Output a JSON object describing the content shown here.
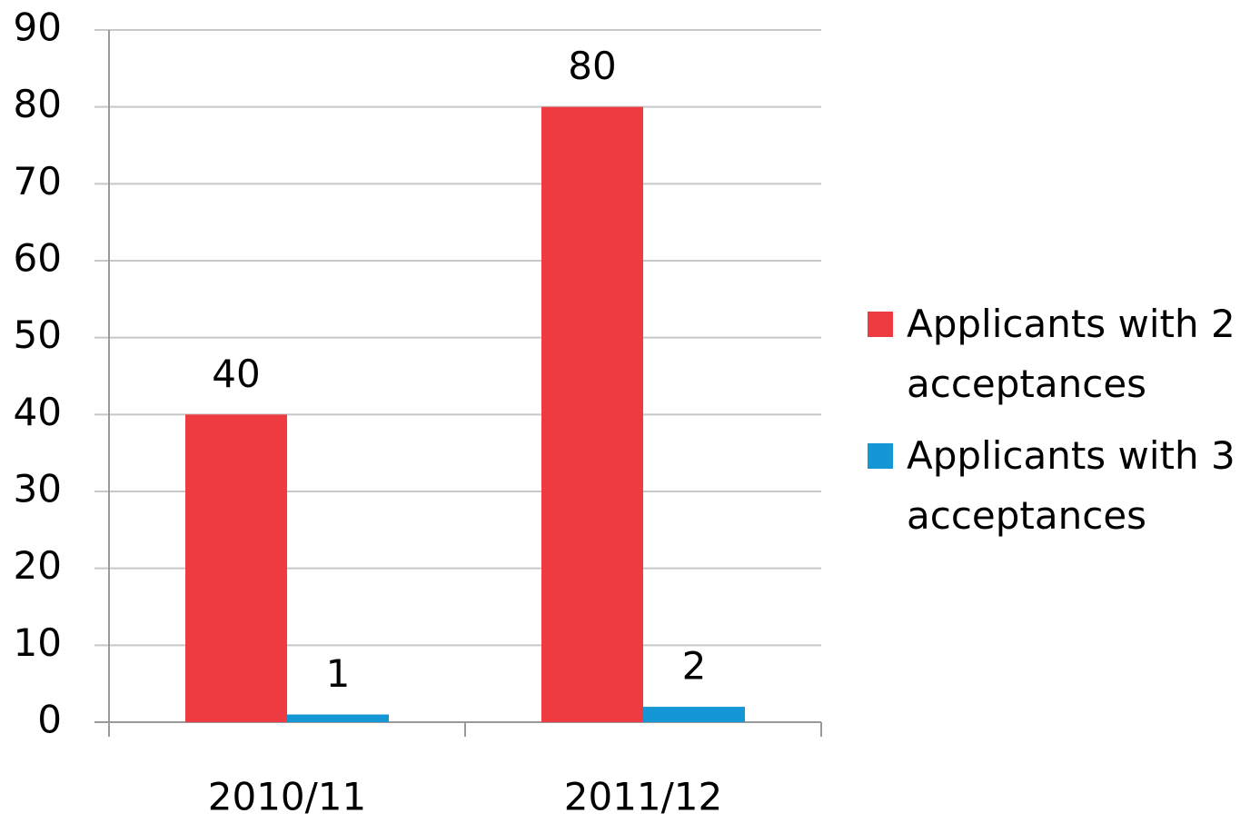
{
  "chart_data": {
    "type": "bar",
    "categories": [
      "2010/11",
      "2011/12"
    ],
    "series": [
      {
        "name": "Applicants with 2 acceptances",
        "color": "#ee3b42",
        "values": [
          40,
          80
        ]
      },
      {
        "name": "Applicants with 3 acceptances",
        "color": "#1497d4",
        "values": [
          1,
          2
        ]
      }
    ],
    "ylim": [
      0,
      90
    ],
    "yticks": [
      0,
      10,
      20,
      30,
      40,
      50,
      60,
      70,
      80,
      90
    ],
    "grid": true,
    "legend": "right"
  }
}
